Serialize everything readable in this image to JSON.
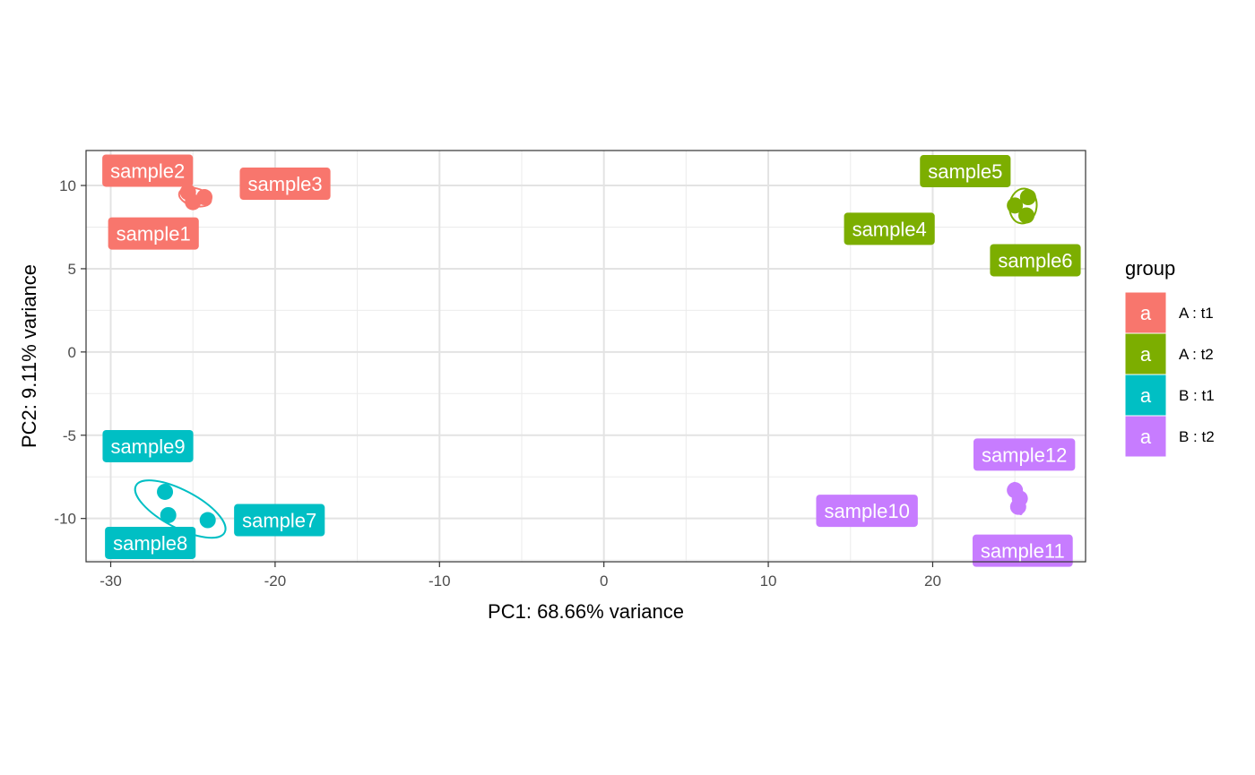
{
  "chart_data": {
    "type": "scatter",
    "title": "",
    "xlabel": "PC1: 68.66% variance",
    "ylabel": "PC2: 9.11% variance",
    "xlim": [
      -31.5,
      29.3
    ],
    "ylim": [
      -12.6,
      12.1
    ],
    "x_ticks": [
      -30,
      -20,
      -10,
      0,
      10,
      20
    ],
    "y_ticks": [
      -10,
      -5,
      0,
      5,
      10
    ],
    "grid": true,
    "legend": {
      "title": "group",
      "placement": "right",
      "key_glyph": "a",
      "entries": [
        {
          "label": "A : t1",
          "color": "#F8766D"
        },
        {
          "label": "A : t2",
          "color": "#7CAE00"
        },
        {
          "label": "B : t1",
          "color": "#00BFC4"
        },
        {
          "label": "B : t2",
          "color": "#C77CFF"
        }
      ]
    },
    "series": [
      {
        "group": "A : t1",
        "color": "#F8766D",
        "points": [
          {
            "label": "sample1",
            "x": -25.0,
            "y": 9.0
          },
          {
            "label": "sample2",
            "x": -25.3,
            "y": 9.6
          },
          {
            "label": "sample3",
            "x": -24.3,
            "y": 9.3
          }
        ]
      },
      {
        "group": "A : t2",
        "color": "#7CAE00",
        "points": [
          {
            "label": "sample4",
            "x": 25.0,
            "y": 8.8
          },
          {
            "label": "sample5",
            "x": 25.8,
            "y": 9.3
          },
          {
            "label": "sample6",
            "x": 25.7,
            "y": 8.2
          }
        ]
      },
      {
        "group": "B : t1",
        "color": "#00BFC4",
        "points": [
          {
            "label": "sample7",
            "x": -24.1,
            "y": -10.1
          },
          {
            "label": "sample8",
            "x": -26.5,
            "y": -9.8
          },
          {
            "label": "sample9",
            "x": -26.7,
            "y": -8.4
          }
        ]
      },
      {
        "group": "B : t2",
        "color": "#C77CFF",
        "points": [
          {
            "label": "sample10",
            "x": 25.0,
            "y": -8.3
          },
          {
            "label": "sample11",
            "x": 25.2,
            "y": -9.3
          },
          {
            "label": "sample12",
            "x": 25.3,
            "y": -8.8
          }
        ]
      }
    ]
  }
}
